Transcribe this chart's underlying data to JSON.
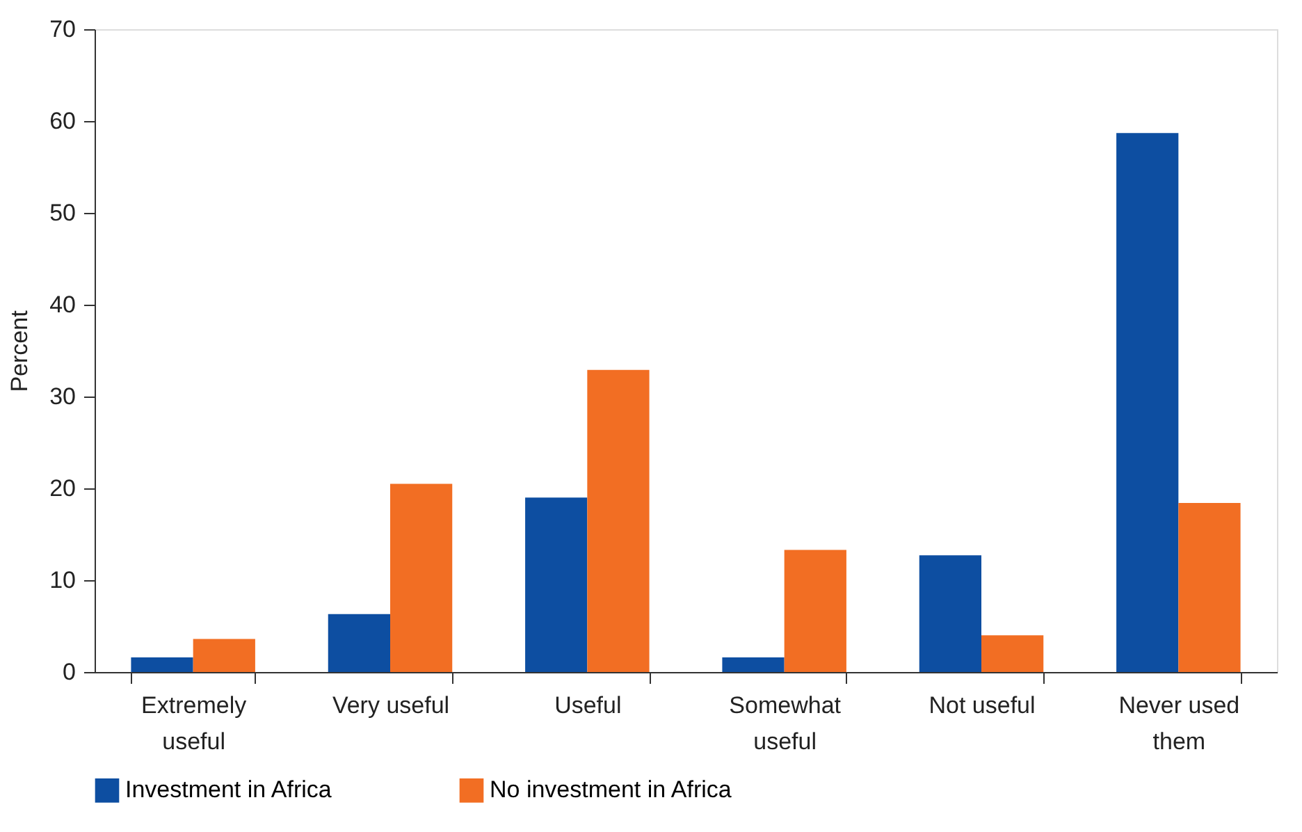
{
  "chart_data": {
    "type": "bar",
    "ylabel": "Percent",
    "categories": [
      "Extremely useful",
      "Very useful",
      "Useful",
      "Somewhat useful",
      "Not useful",
      "Never used them"
    ],
    "series": [
      {
        "name": "Investment in Africa",
        "color": "#0d4ea1",
        "values": [
          1.6,
          6.3,
          19.0,
          1.6,
          12.7,
          58.7
        ]
      },
      {
        "name": "No investment in Africa",
        "color": "#f26e23",
        "values": [
          3.6,
          20.5,
          32.9,
          13.3,
          4.0,
          18.4
        ]
      }
    ],
    "ylim": [
      0,
      70
    ],
    "yticks": [
      0,
      10,
      20,
      30,
      40,
      50,
      60,
      70
    ],
    "grid": false,
    "legend": "bottom"
  }
}
